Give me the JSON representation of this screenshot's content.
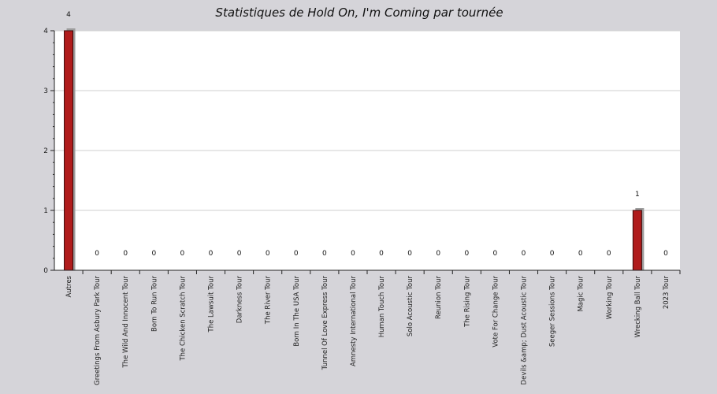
{
  "chart_data": {
    "type": "bar",
    "title": "Statistiques de Hold On, I'm Coming par tournée",
    "xlabel": "",
    "ylabel": "",
    "ylim": [
      0,
      4
    ],
    "yticks": [
      0,
      1,
      2,
      3,
      4
    ],
    "grid": true,
    "categories": [
      "Autres",
      "Greetings From Asbury Park Tour",
      "The Wild And Innocent Tour",
      "Born To Run Tour",
      "The Chicken Scratch Tour",
      "The Lawsuit Tour",
      "Darkness Tour",
      "The River Tour",
      "Born In The USA Tour",
      "Tunnel Of Love Express Tour",
      "Amnesty International Tour",
      "Human Touch Tour",
      "Solo Acoustic Tour",
      "Reunion Tour",
      "The Rising Tour",
      "Vote For Change Tour",
      "Devils &amp; Dust Acoustic Tour",
      "Seeger Sessions Tour",
      "Magic Tour",
      "Working Tour",
      "Wrecking Ball Tour",
      "2023 Tour"
    ],
    "values": [
      4,
      0,
      0,
      0,
      0,
      0,
      0,
      0,
      0,
      0,
      0,
      0,
      0,
      0,
      0,
      0,
      0,
      0,
      0,
      0,
      1,
      0
    ],
    "colors": {
      "bar": "#b01c1c",
      "bar_shadow": "#9d9d9d",
      "plot_bg": "#ffffff",
      "page_bg": "#d5d4d9",
      "grid": "#cfcfcf"
    }
  }
}
